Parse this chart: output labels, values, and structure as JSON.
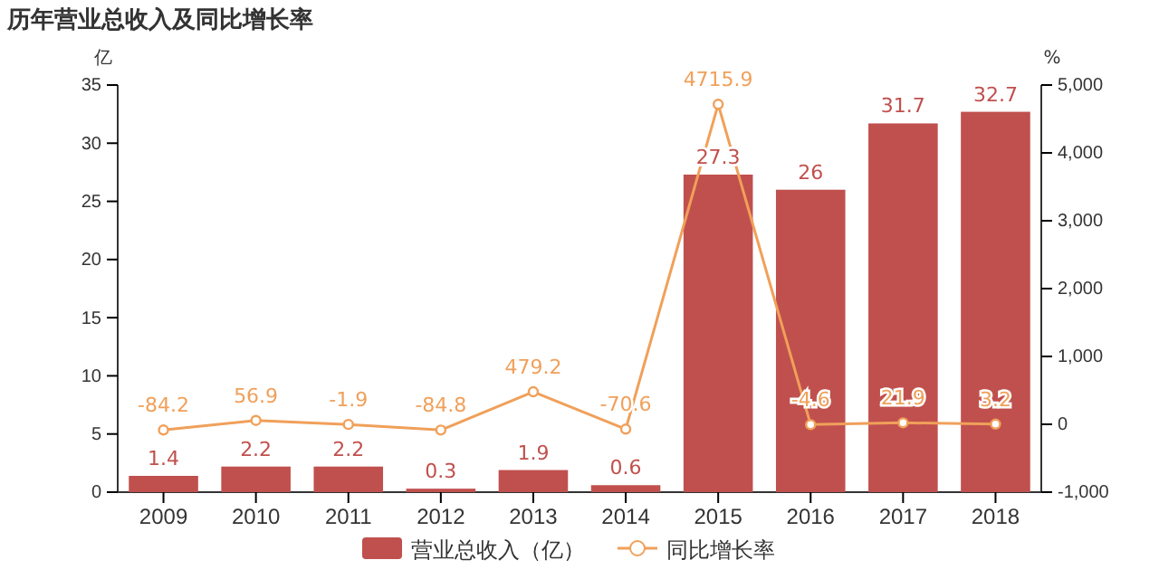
{
  "chart_data": {
    "type": "bar",
    "title": "历年营业总收入及同比增长率",
    "ylabel": "亿",
    "y2label": "%",
    "categories": [
      "2009",
      "2010",
      "2011",
      "2012",
      "2013",
      "2014",
      "2015",
      "2016",
      "2017",
      "2018"
    ],
    "series": [
      {
        "name": "营业总收入（亿）",
        "color": "#c0504d",
        "values": [
          1.4,
          2.2,
          2.2,
          0.3,
          1.9,
          0.6,
          27.3,
          26,
          31.7,
          32.7
        ]
      },
      {
        "name": "同比增长率",
        "type": "line",
        "axis": "y2",
        "color": "#f0a05a",
        "marker": "circle",
        "values": [
          -84.2,
          56.9,
          -1.9,
          -84.8,
          479.2,
          -70.6,
          4715.9,
          -4.6,
          21.9,
          3.2
        ]
      }
    ],
    "ylim": [
      0,
      35
    ],
    "yticks": [
      0,
      5,
      10,
      15,
      20,
      25,
      30,
      35
    ],
    "y2lim": [
      -1000,
      5000
    ],
    "y2ticks": [
      {
        "value": -1000,
        "label": "-1,000"
      },
      0,
      {
        "value": 1000,
        "label": "1,000"
      },
      {
        "value": 2000,
        "label": "2,000"
      },
      {
        "value": 3000,
        "label": "3,000"
      },
      {
        "value": 4000,
        "label": "4,000"
      },
      {
        "value": 5000,
        "label": "5,000"
      }
    ],
    "data_labels": true,
    "legend": "bottom",
    "grid": false
  }
}
